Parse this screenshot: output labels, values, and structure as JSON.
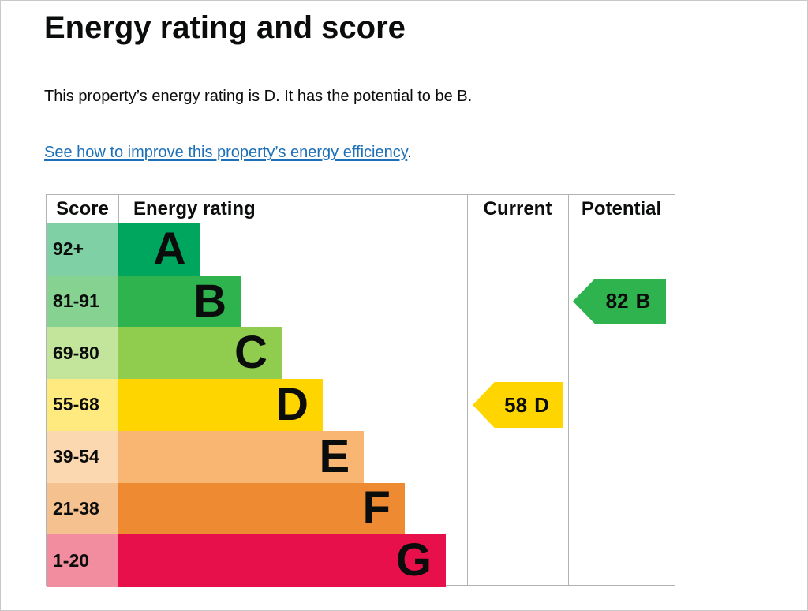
{
  "page": {
    "title": "Energy rating and score",
    "summary": "This property’s energy rating is D. It has the potential to be B.",
    "improve_link": "See how to improve this property’s energy efficiency",
    "improve_suffix": "."
  },
  "chart_data": {
    "type": "bar",
    "title": "Energy rating and score",
    "columns": [
      "Score",
      "Energy rating",
      "Current",
      "Potential"
    ],
    "bands": [
      {
        "score_range": "92+",
        "letter": "A",
        "band_color": "#00a65e",
        "tint_color": "#7fd0a4",
        "bar_width_pct": 23.5
      },
      {
        "score_range": "81-91",
        "letter": "B",
        "band_color": "#2eb34f",
        "tint_color": "#86d391",
        "bar_width_pct": 35.1
      },
      {
        "score_range": "69-80",
        "letter": "C",
        "band_color": "#90cc4e",
        "tint_color": "#c2e49b",
        "bar_width_pct": 46.8
      },
      {
        "score_range": "55-68",
        "letter": "D",
        "band_color": "#ffd500",
        "tint_color": "#ffea80",
        "bar_width_pct": 58.6
      },
      {
        "score_range": "39-54",
        "letter": "E",
        "band_color": "#f9b572",
        "tint_color": "#fbd8b0",
        "bar_width_pct": 70.4
      },
      {
        "score_range": "21-38",
        "letter": "F",
        "band_color": "#ee8a31",
        "tint_color": "#f5c18f",
        "bar_width_pct": 82.1
      },
      {
        "score_range": "1-20",
        "letter": "G",
        "band_color": "#e8104a",
        "tint_color": "#f18d9f",
        "bar_width_pct": 93.9
      }
    ],
    "current": {
      "value": "58",
      "letter": "D",
      "band_index": 3,
      "color": "#ffd500"
    },
    "potential": {
      "value": "82",
      "letter": "B",
      "band_index": 1,
      "color": "#2eb34f"
    }
  }
}
